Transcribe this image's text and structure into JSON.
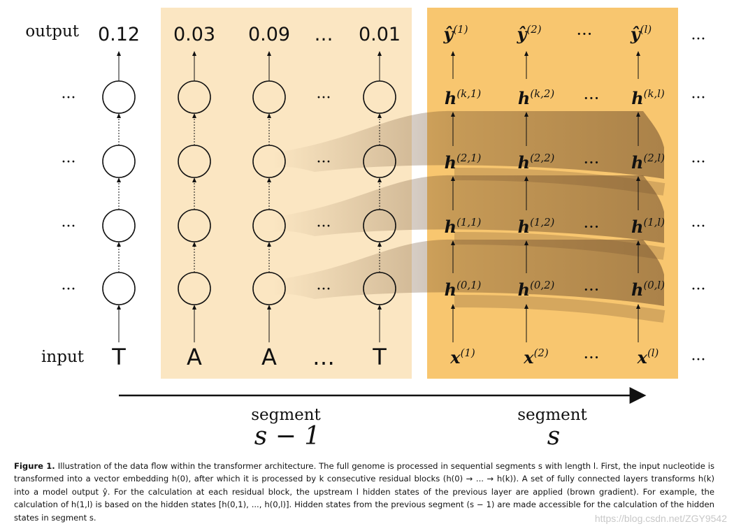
{
  "figure": {
    "row_labels": {
      "output": "output",
      "input": "input"
    },
    "outputs": [
      "0.12",
      "0.03",
      "0.09",
      "…",
      "0.01"
    ],
    "inputs": [
      "T",
      "A",
      "A",
      "…",
      "T"
    ],
    "row_dots": "···",
    "segment_prev": {
      "word": "segment",
      "math": "s − 1"
    },
    "segment_curr": {
      "word": "segment",
      "math": "s"
    },
    "seg_s": {
      "outputs": [
        {
          "base": "ŷ",
          "sup": "(1)"
        },
        {
          "base": "ŷ",
          "sup": "(2)"
        },
        {
          "base": "···",
          "sup": ""
        },
        {
          "base": "ŷ",
          "sup": "(l)"
        }
      ],
      "rows": [
        [
          {
            "base": "h",
            "sup": "(k,1)"
          },
          {
            "base": "h",
            "sup": "(k,2)"
          },
          {
            "base": "···",
            "sup": ""
          },
          {
            "base": "h",
            "sup": "(k,l)"
          }
        ],
        [
          {
            "base": "h",
            "sup": "(2,1)"
          },
          {
            "base": "h",
            "sup": "(2,2)"
          },
          {
            "base": "···",
            "sup": ""
          },
          {
            "base": "h",
            "sup": "(2,l)"
          }
        ],
        [
          {
            "base": "h",
            "sup": "(1,1)"
          },
          {
            "base": "h",
            "sup": "(1,2)"
          },
          {
            "base": "···",
            "sup": ""
          },
          {
            "base": "h",
            "sup": "(1,l)"
          }
        ],
        [
          {
            "base": "h",
            "sup": "(0,1)"
          },
          {
            "base": "h",
            "sup": "(0,2)"
          },
          {
            "base": "···",
            "sup": ""
          },
          {
            "base": "h",
            "sup": "(0,l)"
          }
        ]
      ],
      "inputs": [
        {
          "base": "x",
          "sup": "(1)"
        },
        {
          "base": "x",
          "sup": "(2)"
        },
        {
          "base": "···",
          "sup": ""
        },
        {
          "base": "x",
          "sup": "(l)"
        }
      ]
    },
    "colors": {
      "segment_prev_bg": "#fbe6c2",
      "segment_curr_bg": "#f8c66f",
      "flow_brown": "#8a6a4a"
    }
  },
  "caption": {
    "label": "Figure 1.",
    "text": "Illustration of the data flow within the transformer architecture. The full genome is processed in sequential segments s with length l. First, the input nucleotide is transformed into a vector embedding h(0), after which it is processed by k consecutive residual blocks (h(0) → ... → h(k)). A set of fully connected layers transforms h(k) into a model output ŷ. For the calculation at each residual block, the upstream l hidden states of the previous layer are applied (brown gradient). For example, the calculation of h(1,l) is based on the hidden states [h(0,1), ..., h(0,l)]. Hidden states from the previous segment (s − 1) are made accessible for the calculation of the hidden states in segment s."
  },
  "watermark": "https://blog.csdn.net/ZGY9542"
}
